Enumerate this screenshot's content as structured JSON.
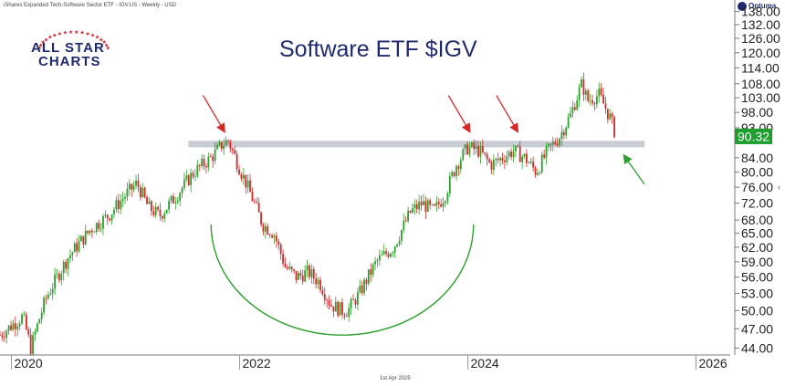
{
  "header": {
    "instrument": "iShares Expanded Tech-Software Sector ETF - IGV.US - Weekly - USD",
    "provider": "Optuma",
    "footer_date": "1st Apr 2025"
  },
  "logo": {
    "line1": "ALL STAR",
    "line2": "CHARTS"
  },
  "chart_data": {
    "type": "candlestick",
    "title": "Software ETF $IGV",
    "frequency": "Weekly",
    "currency": "USD",
    "x_ticks": [
      "2020",
      "2022",
      "2024",
      "2026"
    ],
    "x_range": [
      2019.9,
      2026.3
    ],
    "y_ticks": [
      "44.00",
      "47.00",
      "50.00",
      "53.00",
      "56.00",
      "59.00",
      "62.00",
      "65.00",
      "68.00",
      "72.00",
      "76.00",
      "80.00",
      "84.00",
      "93.00",
      "98.00",
      "103.00",
      "108.00",
      "114.00",
      "120.00",
      "126.00",
      "132.00",
      "138.00"
    ],
    "y_range": [
      43,
      140
    ],
    "y_scale": "log",
    "last_price": "90.32",
    "last_price_color": "#1e9e2e",
    "up_color": "#2e9e2e",
    "down_color": "#d62828",
    "price_path": [
      [
        2019.9,
        46
      ],
      [
        2020.1,
        49
      ],
      [
        2020.17,
        44
      ],
      [
        2020.3,
        52
      ],
      [
        2020.5,
        60
      ],
      [
        2020.7,
        66
      ],
      [
        2020.85,
        69
      ],
      [
        2021.0,
        74
      ],
      [
        2021.1,
        77
      ],
      [
        2021.2,
        71
      ],
      [
        2021.3,
        69
      ],
      [
        2021.45,
        74
      ],
      [
        2021.6,
        80
      ],
      [
        2021.75,
        84
      ],
      [
        2021.85,
        88
      ],
      [
        2021.9,
        89
      ],
      [
        2022.0,
        81
      ],
      [
        2022.1,
        74
      ],
      [
        2022.2,
        67
      ],
      [
        2022.3,
        65
      ],
      [
        2022.4,
        58
      ],
      [
        2022.5,
        56
      ],
      [
        2022.6,
        57
      ],
      [
        2022.7,
        55
      ],
      [
        2022.8,
        51
      ],
      [
        2022.9,
        50
      ],
      [
        2022.95,
        50
      ],
      [
        2023.05,
        53
      ],
      [
        2023.2,
        59
      ],
      [
        2023.35,
        62
      ],
      [
        2023.5,
        70
      ],
      [
        2023.6,
        72
      ],
      [
        2023.7,
        70
      ],
      [
        2023.8,
        74
      ],
      [
        2023.9,
        82
      ],
      [
        2024.0,
        87
      ],
      [
        2024.1,
        86
      ],
      [
        2024.2,
        82
      ],
      [
        2024.3,
        84
      ],
      [
        2024.4,
        86
      ],
      [
        2024.5,
        84
      ],
      [
        2024.6,
        80
      ],
      [
        2024.7,
        86
      ],
      [
        2024.8,
        90
      ],
      [
        2024.9,
        97
      ],
      [
        2025.0,
        108
      ],
      [
        2025.05,
        102
      ],
      [
        2025.15,
        104
      ],
      [
        2025.25,
        96
      ],
      [
        2025.3,
        90.32
      ]
    ],
    "annotations": {
      "resistance_level": 88,
      "resistance_from": 2021.55,
      "resistance_to": 2025.55,
      "red_arrow_targets": [
        [
          2021.88,
          90
        ],
        [
          2024.03,
          90
        ],
        [
          2024.45,
          90
        ]
      ],
      "green_arrow_target": [
        2025.3,
        88
      ],
      "cup_from": 2021.75,
      "cup_to": 2024.05,
      "cup_bottom": 46,
      "cup_top": 67
    }
  }
}
